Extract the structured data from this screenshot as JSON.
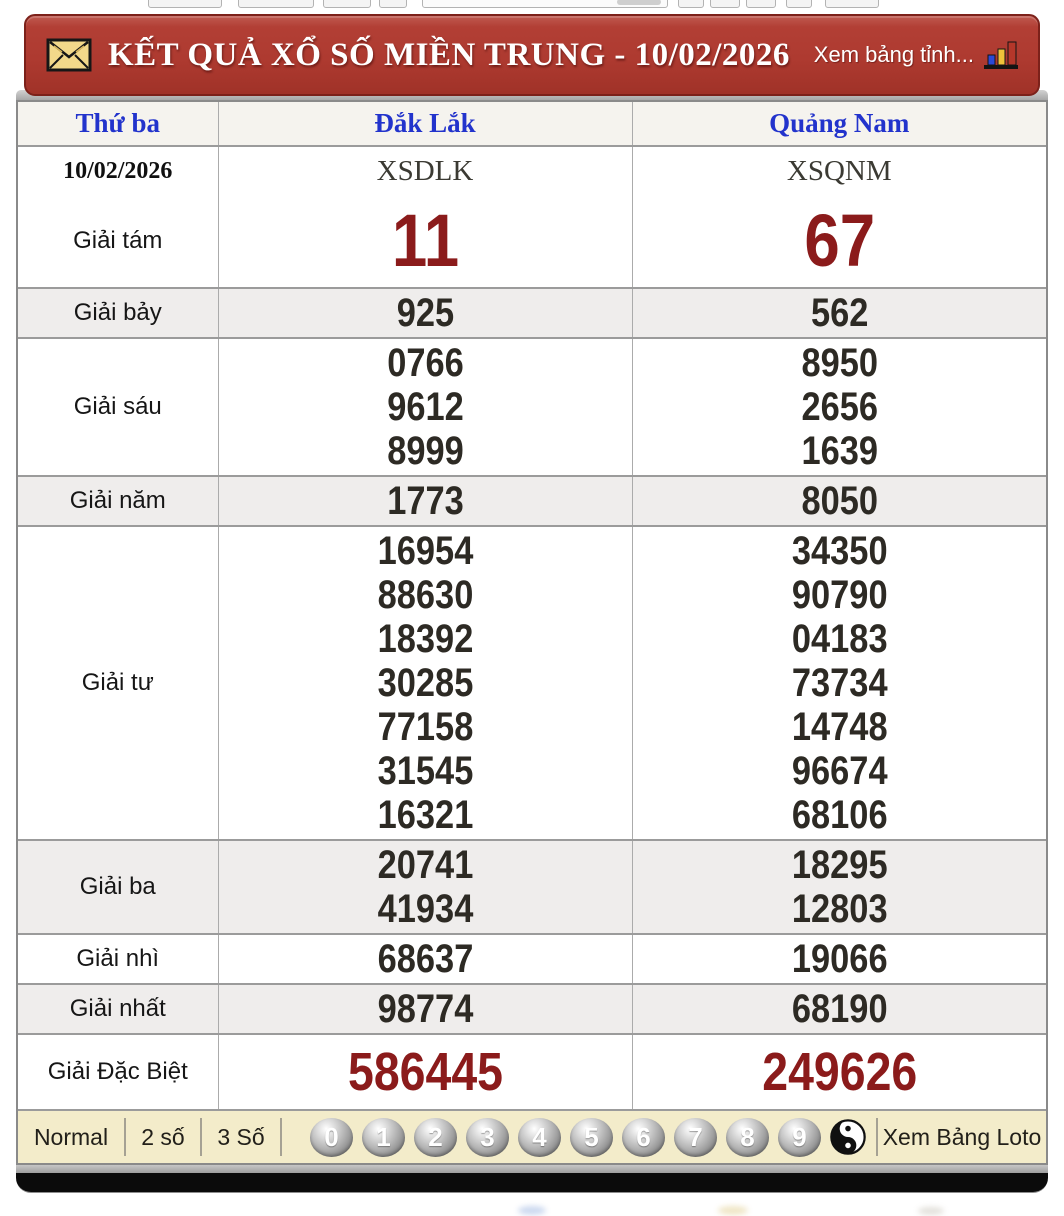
{
  "colors": {
    "banner_red": "#ae3a30",
    "banner_border": "#7c211a",
    "prize_red": "#8b1b1b",
    "header_blue": "#2233cc",
    "number_dark": "#2d2a24",
    "toolbar_bg": "#f3ecca"
  },
  "header": {
    "title": "KẾT QUẢ XỔ SỐ MIỀN TRUNG - 10/02/2026",
    "province_link": "Xem bảng tỉnh...",
    "left_icon": "envelope-icon",
    "right_icon": "bar-chart-icon"
  },
  "table": {
    "columns": [
      "Thứ ba",
      "Đắk Lắk",
      "Quảng Nam"
    ],
    "date": "10/02/2026",
    "station_codes": [
      "XSDLK",
      "XSQNM"
    ],
    "prizes": [
      {
        "label": "Giải tám",
        "emphasis": "xl",
        "daklak": [
          "11"
        ],
        "quangnam": [
          "67"
        ]
      },
      {
        "label": "Giải bảy",
        "daklak": [
          "925"
        ],
        "quangnam": [
          "562"
        ]
      },
      {
        "label": "Giải sáu",
        "daklak": [
          "0766",
          "9612",
          "8999"
        ],
        "quangnam": [
          "8950",
          "2656",
          "1639"
        ]
      },
      {
        "label": "Giải năm",
        "daklak": [
          "1773"
        ],
        "quangnam": [
          "8050"
        ]
      },
      {
        "label": "Giải tư",
        "daklak": [
          "16954",
          "88630",
          "18392",
          "30285",
          "77158",
          "31545",
          "16321"
        ],
        "quangnam": [
          "34350",
          "90790",
          "04183",
          "73734",
          "14748",
          "96674",
          "68106"
        ]
      },
      {
        "label": "Giải ba",
        "daklak": [
          "20741",
          "41934"
        ],
        "quangnam": [
          "18295",
          "12803"
        ]
      },
      {
        "label": "Giải nhì",
        "daklak": [
          "68637"
        ],
        "quangnam": [
          "19066"
        ]
      },
      {
        "label": "Giải nhất",
        "daklak": [
          "98774"
        ],
        "quangnam": [
          "68190"
        ]
      },
      {
        "label": "Giải Đặc Biệt",
        "emphasis": "lg",
        "daklak": [
          "586445"
        ],
        "quangnam": [
          "249626"
        ]
      }
    ]
  },
  "toolbar": {
    "modes": [
      "Normal",
      "2 số",
      "3 Số"
    ],
    "digits": [
      "0",
      "1",
      "2",
      "3",
      "4",
      "5",
      "6",
      "7",
      "8",
      "9"
    ],
    "yinyang_icon": "yin-yang-icon",
    "loto_link": "Xem Bảng Loto"
  }
}
